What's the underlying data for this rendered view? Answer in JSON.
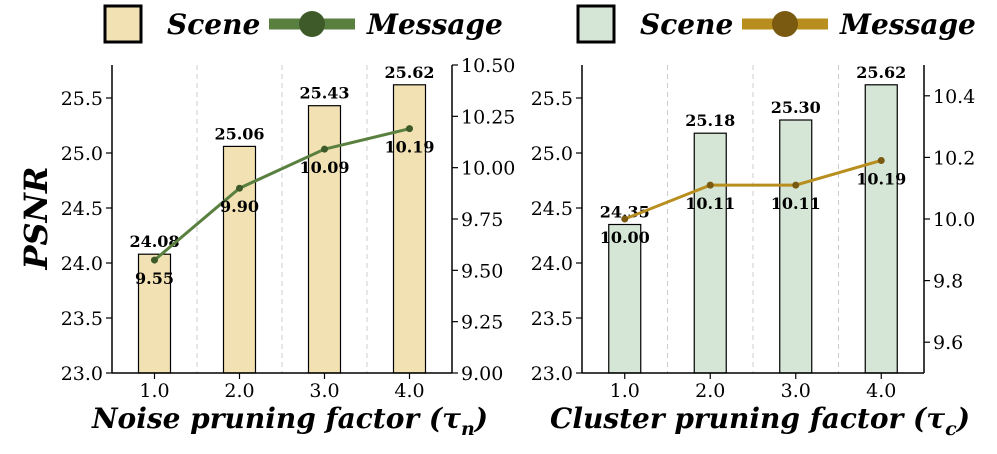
{
  "ylabel": "PSNR",
  "legends": [
    {
      "scene_label": "Scene",
      "message_label": "Message"
    },
    {
      "scene_label": "Scene",
      "message_label": "Message"
    }
  ],
  "chart_data": [
    {
      "type": "bar+line",
      "xlabel": "Noise pruning factor (τ",
      "xlabel_sub": "n",
      "xlabel_close": ")",
      "categories": [
        "1.0",
        "2.0",
        "3.0",
        "4.0"
      ],
      "bar_series": {
        "name": "Scene",
        "values": [
          24.08,
          25.06,
          25.43,
          25.62
        ],
        "labels": [
          "24.08",
          "25.06",
          "25.43",
          "25.62"
        ],
        "color": "#f2e2b3"
      },
      "line_series": {
        "name": "Message",
        "values": [
          9.55,
          9.9,
          10.09,
          10.19
        ],
        "labels": [
          "9.55",
          "9.90",
          "10.09",
          "10.19"
        ],
        "color": "#5a8040",
        "dot_color": "#3d5a28"
      },
      "left_axis": {
        "ylim": [
          23.0,
          25.8
        ],
        "ticks": [
          "23.0",
          "23.5",
          "24.0",
          "24.5",
          "25.0",
          "25.5"
        ]
      },
      "right_axis": {
        "ylim": [
          9.0,
          10.5
        ],
        "ticks": [
          "9.00",
          "9.25",
          "9.50",
          "9.75",
          "10.00",
          "10.25",
          "10.50"
        ]
      }
    },
    {
      "type": "bar+line",
      "xlabel": "Cluster pruning factor (τ",
      "xlabel_sub": "c",
      "xlabel_close": ")",
      "categories": [
        "1.0",
        "2.0",
        "3.0",
        "4.0"
      ],
      "bar_series": {
        "name": "Scene",
        "values": [
          24.35,
          25.18,
          25.3,
          25.62
        ],
        "labels": [
          "24.35",
          "25.18",
          "25.30",
          "25.62"
        ],
        "color": "#d6e6d6"
      },
      "line_series": {
        "name": "Message",
        "values": [
          10.0,
          10.11,
          10.11,
          10.19
        ],
        "labels": [
          "10.00",
          "10.11",
          "10.11",
          "10.19"
        ],
        "color": "#b88e1e",
        "dot_color": "#7a5a10"
      },
      "left_axis": {
        "ylim": [
          23.0,
          25.8
        ],
        "ticks": [
          "23.0",
          "23.5",
          "24.0",
          "24.5",
          "25.0",
          "25.5"
        ]
      },
      "right_axis": {
        "ylim": [
          9.5,
          10.5
        ],
        "ticks": [
          "9.6",
          "9.8",
          "10.0",
          "10.2",
          "10.4"
        ]
      }
    }
  ]
}
